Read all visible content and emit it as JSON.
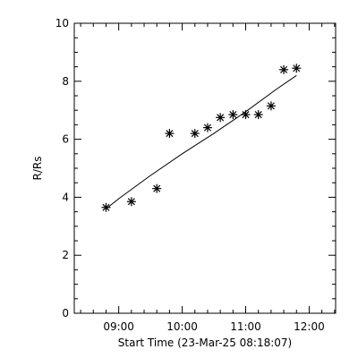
{
  "chart_data": {
    "type": "scatter",
    "title": "",
    "xlabel": "Start Time (23-Mar-25 08:18:07)",
    "ylabel": "R/Rs",
    "xlim": [
      "08:18",
      "12:25"
    ],
    "ylim": [
      0,
      10
    ],
    "x_ticks": [
      "09:00",
      "10:00",
      "11:00",
      "12:00"
    ],
    "y_ticks": [
      "0",
      "2",
      "4",
      "6",
      "8",
      "10"
    ],
    "series": [
      {
        "marker": "asterisk",
        "x": [
          "08:48",
          "09:12",
          "09:36",
          "09:48",
          "10:12",
          "10:24",
          "10:36",
          "10:48",
          "11:00",
          "11:12",
          "11:24",
          "11:36",
          "11:48"
        ],
        "y": [
          3.65,
          3.85,
          4.3,
          6.2,
          6.2,
          6.4,
          6.75,
          6.85,
          6.85,
          6.85,
          7.15,
          8.4,
          8.45
        ]
      }
    ],
    "fit_line": {
      "x": [
        "08:48",
        "09:00",
        "09:30",
        "10:00",
        "10:30",
        "11:00",
        "11:30",
        "11:48"
      ],
      "y": [
        3.6,
        3.95,
        4.75,
        5.5,
        6.2,
        6.95,
        7.75,
        8.2
      ]
    },
    "grid": false,
    "legend": "none"
  }
}
